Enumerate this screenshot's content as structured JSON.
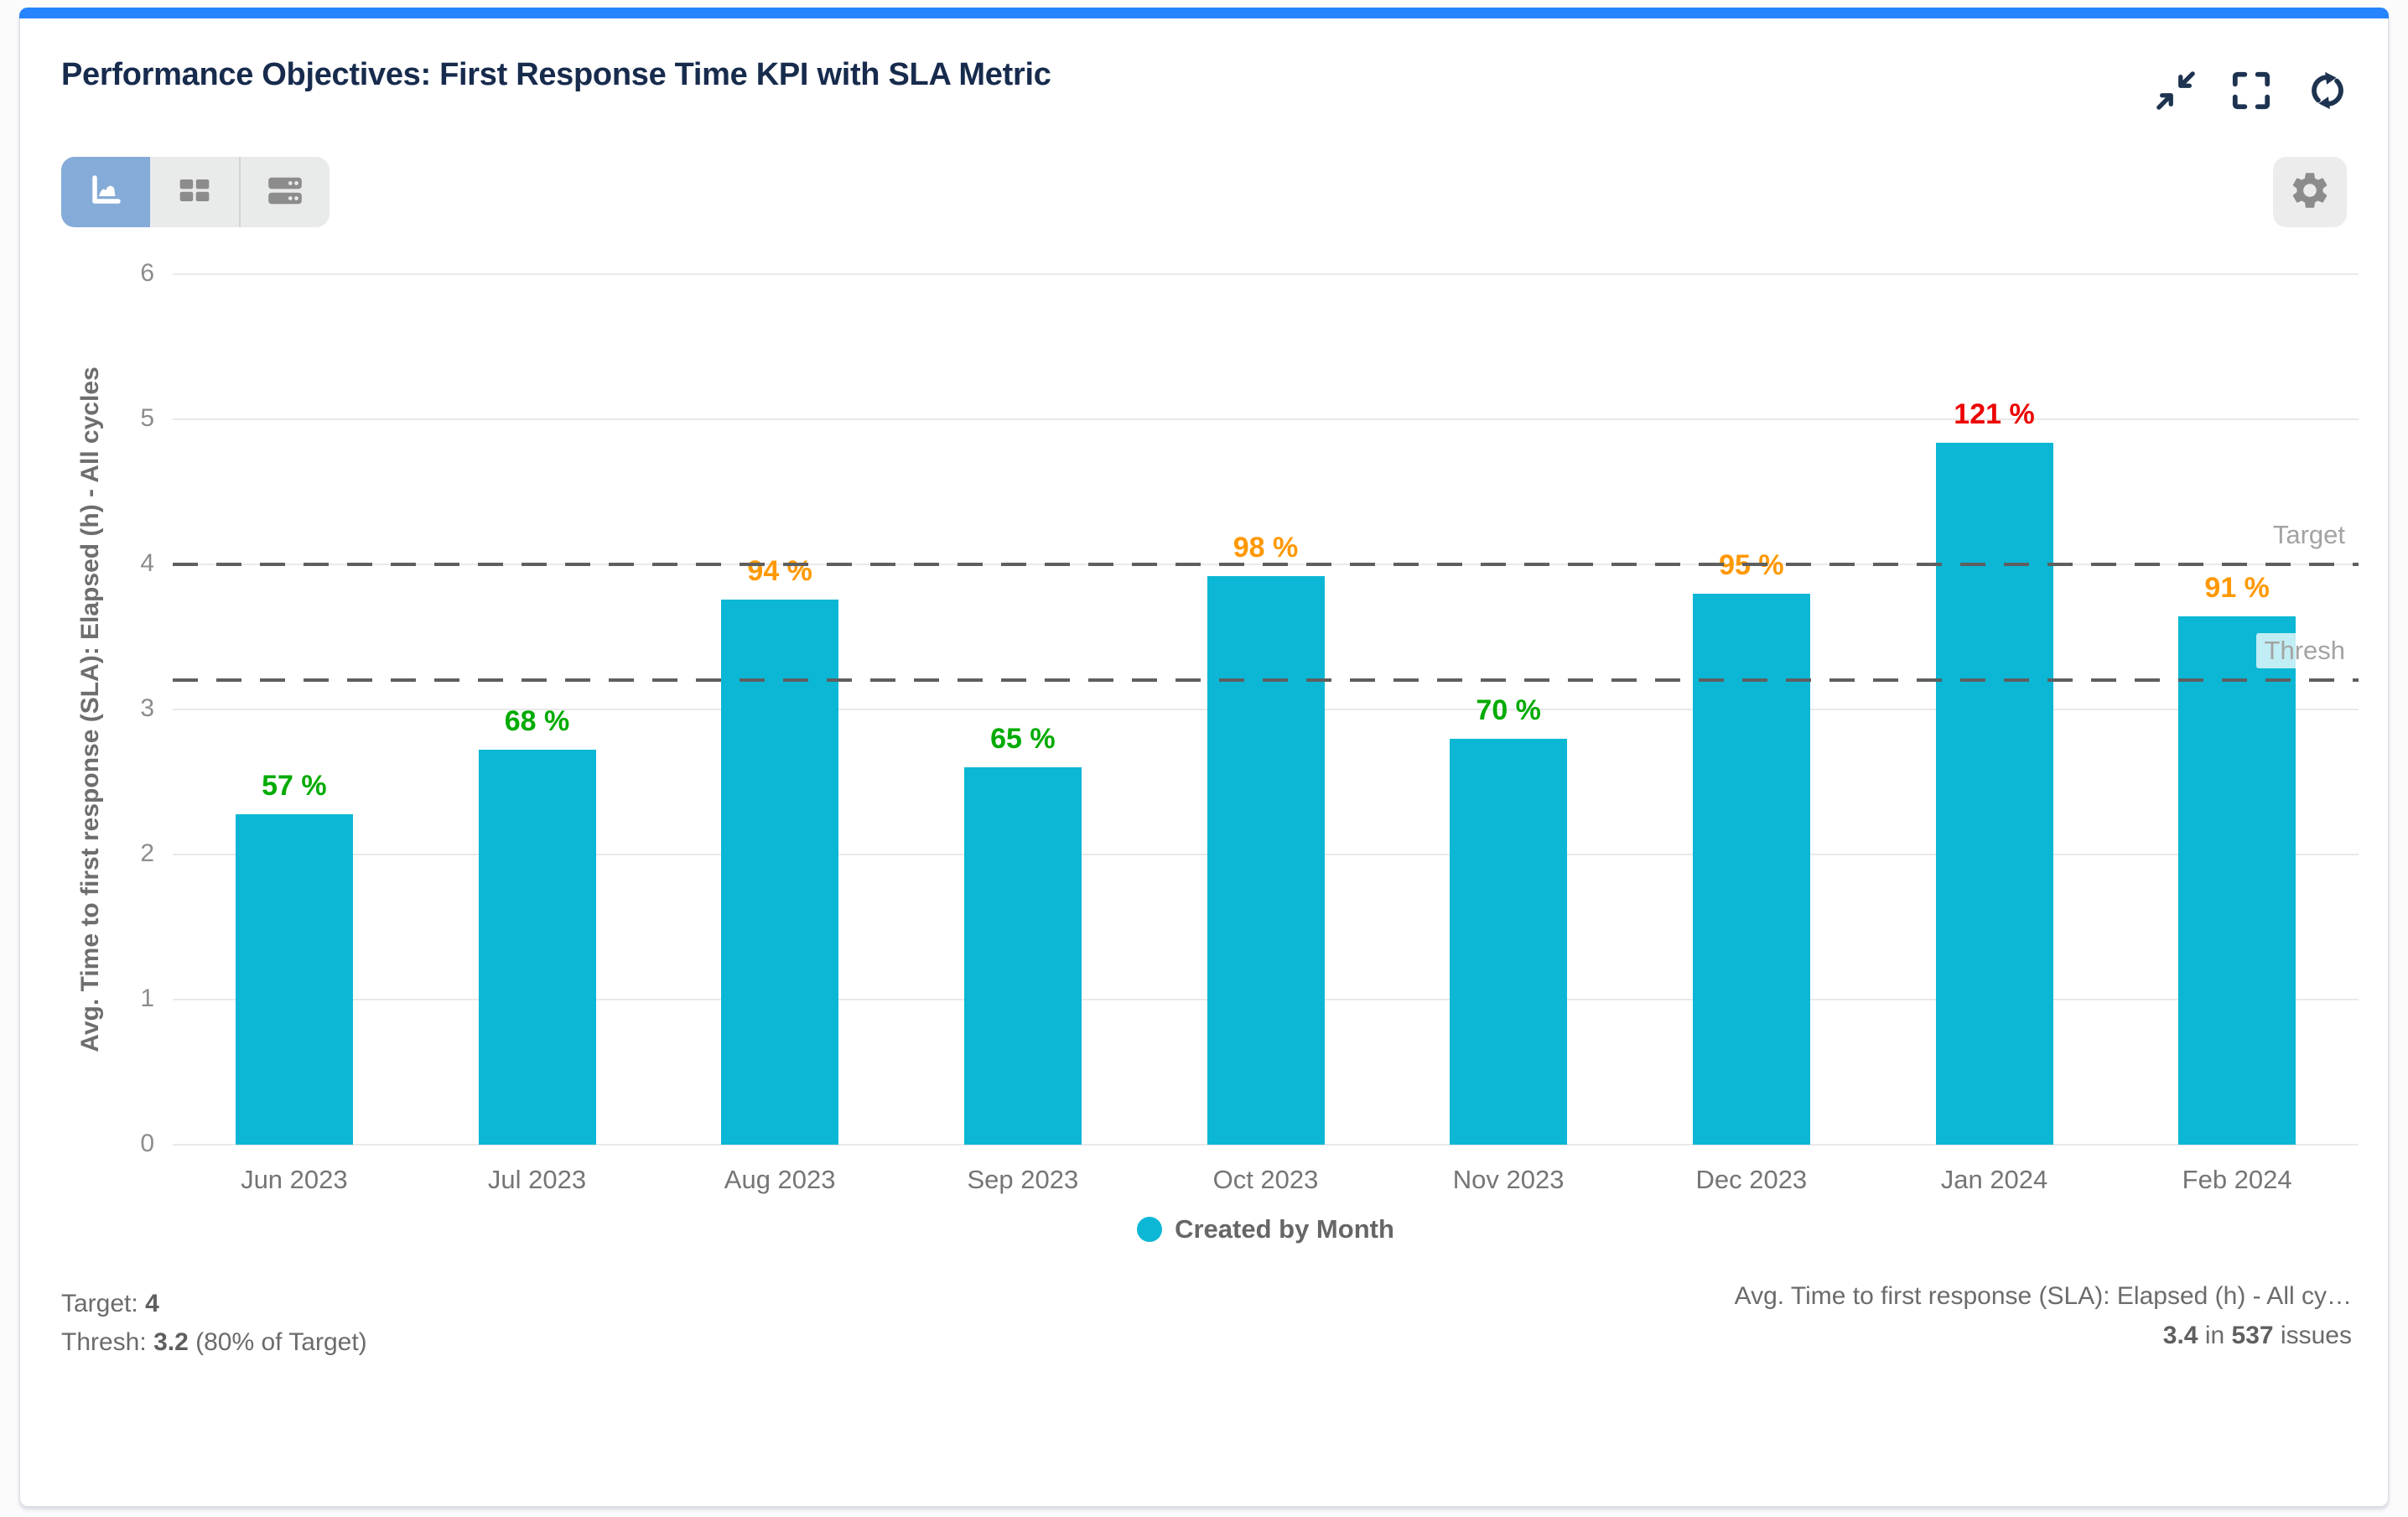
{
  "card": {
    "title": "Performance Objectives: First Response Time KPI with SLA Metric",
    "header_icons": [
      "collapse-icon",
      "fullscreen-icon",
      "refresh-icon"
    ],
    "toolbar_views": [
      "chart-view",
      "table-view",
      "rows-view"
    ],
    "active_view": "chart-view",
    "accent_color": "#2684ff"
  },
  "chart_data": {
    "type": "bar",
    "categories": [
      "Jun 2023",
      "Jul 2023",
      "Aug 2023",
      "Sep 2023",
      "Oct 2023",
      "Nov 2023",
      "Dec 2023",
      "Jan 2024",
      "Feb 2024"
    ],
    "series": [
      {
        "name": "Created by Month",
        "color": "#0bb7d4",
        "values": [
          2.28,
          2.72,
          3.76,
          2.6,
          3.92,
          2.8,
          3.8,
          4.84,
          3.64
        ]
      }
    ],
    "point_labels": [
      "57 %",
      "68 %",
      "94 %",
      "65 %",
      "98 %",
      "70 %",
      "95 %",
      "121 %",
      "91 %"
    ],
    "label_colors": [
      "#00ab00",
      "#00ab00",
      "#ff9800",
      "#00ab00",
      "#ff9800",
      "#00ab00",
      "#ff9800",
      "#ed0000",
      "#ff9800"
    ],
    "xlabel": "",
    "ylabel": "Avg. Time to first response (SLA): Elapsed (h) - All cycles",
    "ylim": [
      0,
      6
    ],
    "yticks": [
      0,
      1,
      2,
      3,
      4,
      5,
      6
    ],
    "grid": true,
    "target_line": {
      "value": 4,
      "label": "Target"
    },
    "threshold_line": {
      "value": 3.2,
      "label": "Thresh"
    },
    "legend": {
      "label": "Created by Month",
      "color": "#0bb7d4",
      "position": "bottom"
    }
  },
  "footer": {
    "target_label": "Target:",
    "target_value": "4",
    "thresh_label": "Thresh:",
    "thresh_value": "3.2",
    "thresh_suffix": "(80% of Target)",
    "metric_name": "Avg. Time to first response (SLA): Elapsed (h) - All cy…",
    "metric_value": "3.4",
    "word_in": "in",
    "metric_count": "537",
    "word_issues": "issues"
  }
}
